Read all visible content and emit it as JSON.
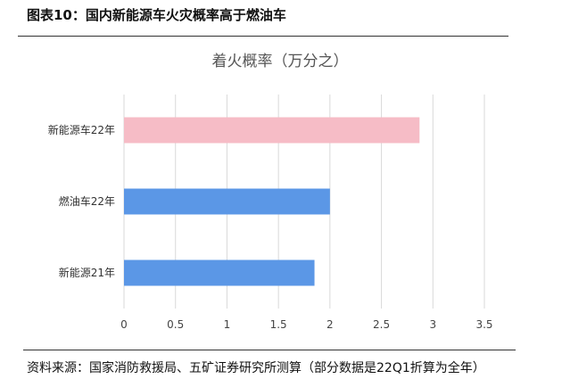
{
  "figure_title": "图表10：国内新能源车火灾概率高于燃油车",
  "source": "资料来源：国家消防救援局、五矿证券研究所测算（部分数据是22Q1折算为全年）",
  "chart_data": {
    "type": "bar",
    "orientation": "horizontal",
    "title": "着火概率（万分之）",
    "categories": [
      "新能源车22年",
      "燃油车22年",
      "新能源21年"
    ],
    "values": [
      2.87,
      2.0,
      1.85
    ],
    "colors": [
      "#f6bcc6",
      "#5b97e6",
      "#5b97e6"
    ],
    "xlim": [
      0,
      3.5
    ],
    "xticks": [
      "0",
      "0.5",
      "1",
      "1.5",
      "2",
      "2.5",
      "3",
      "3.5"
    ],
    "grid": true,
    "legend": "none"
  }
}
